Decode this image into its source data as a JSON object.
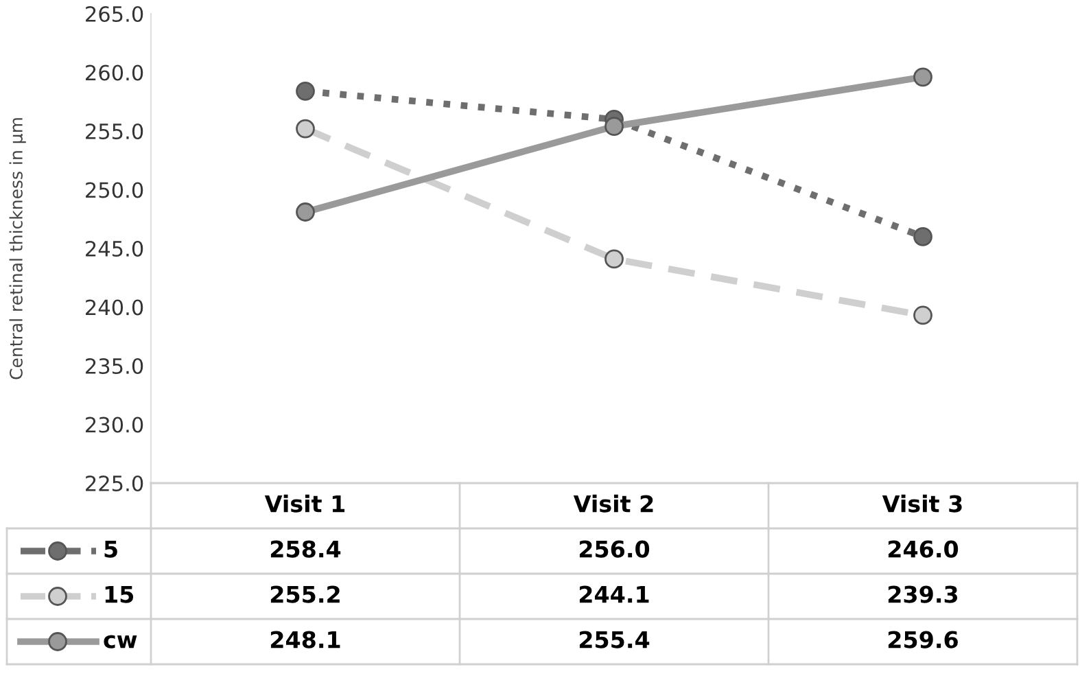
{
  "chart_data": {
    "type": "line",
    "ylabel": "Central retinal thickness in µm",
    "categories": [
      "Visit 1",
      "Visit 2",
      "Visit 3"
    ],
    "series": [
      {
        "name": "5",
        "color": "#6e6e6e",
        "values": [
          258.4,
          256.0,
          246.0
        ],
        "value_labels": [
          "258.4",
          "256.0",
          "246.0"
        ],
        "line_style": "dotted"
      },
      {
        "name": "15",
        "color": "#cfcfcf",
        "values": [
          255.2,
          244.1,
          239.3
        ],
        "value_labels": [
          "255.2",
          "244.1",
          "239.3"
        ],
        "line_style": "dashed"
      },
      {
        "name": "cw",
        "color": "#9a9a9a",
        "values": [
          248.1,
          255.4,
          259.6
        ],
        "value_labels": [
          "248.1",
          "255.4",
          "259.6"
        ],
        "line_style": "solid"
      }
    ],
    "ylim": [
      225,
      265
    ],
    "yticks": [
      {
        "value": 225,
        "label": "225.0"
      },
      {
        "value": 230,
        "label": "230.0"
      },
      {
        "value": 235,
        "label": "235.0"
      },
      {
        "value": 240,
        "label": "240.0"
      },
      {
        "value": 245,
        "label": "245.0"
      },
      {
        "value": 250,
        "label": "250.0"
      },
      {
        "value": 255,
        "label": "255.0"
      },
      {
        "value": 260,
        "label": "260.0"
      },
      {
        "value": 265,
        "label": "265.0"
      }
    ],
    "marker": "circle",
    "grid": false,
    "legend": "bottom left"
  }
}
